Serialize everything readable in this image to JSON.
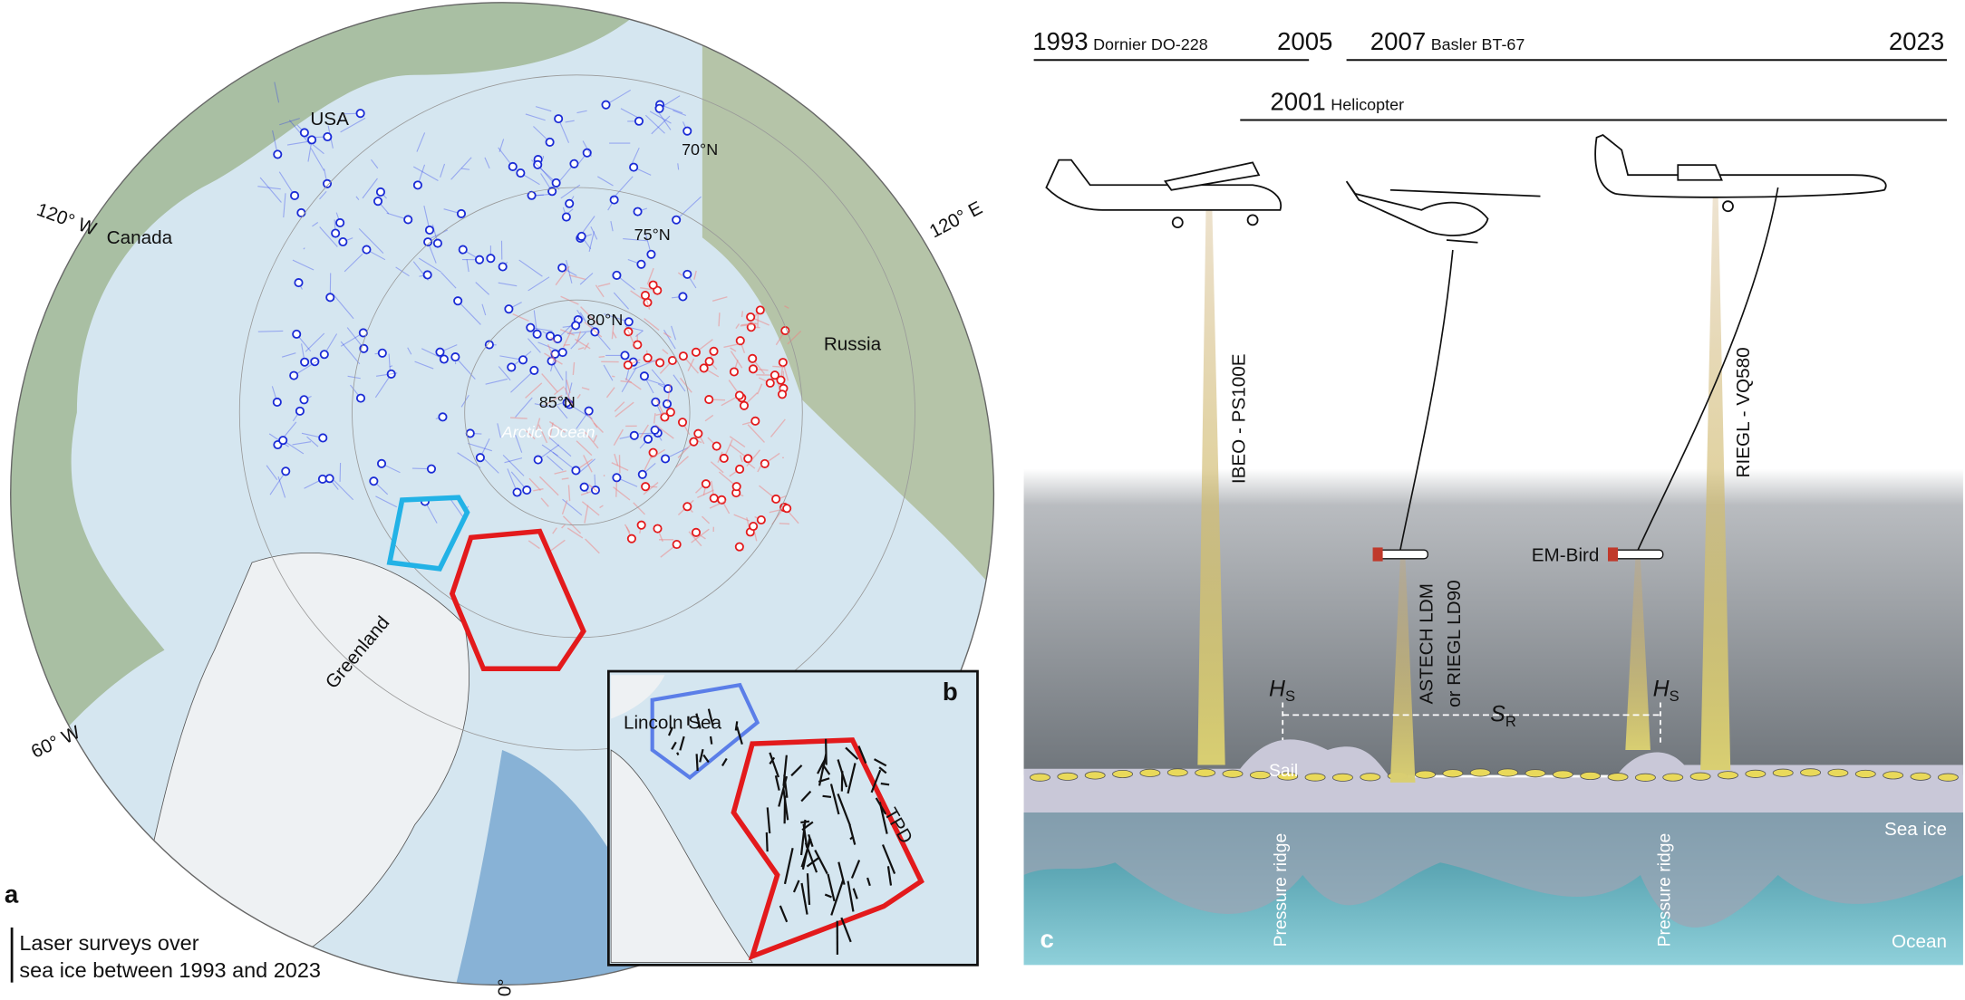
{
  "panel_a": {
    "label": "a",
    "map_labels": {
      "usa": "USA",
      "canada": "Canada",
      "lon_120w": "120° W",
      "lon_120e": "120° E",
      "lat_70": "70°N",
      "lat_75": "75°N",
      "lat_80": "80°N",
      "lat_85": "85°N",
      "ocean": "Arctic Ocean",
      "russia": "Russia",
      "greenland": "Greenland",
      "lon_60w": "60° W",
      "lon_0": "0°"
    },
    "caption": [
      "Laser surveys over",
      "sea ice between 1993 and 2023"
    ]
  },
  "panel_b": {
    "label": "b",
    "lincoln_sea": "Lincoln Sea",
    "tpd": "TPD"
  },
  "panel_c": {
    "label": "c",
    "timeline": [
      {
        "start": "1993",
        "aircraft": "Dornier DO-228",
        "end": "2005"
      },
      {
        "start": "2007",
        "aircraft": "Basler BT-67",
        "end": "2023"
      },
      {
        "start": "2001",
        "aircraft": "Helicopter"
      }
    ],
    "instruments": {
      "dornier": "IBEO - PS100E",
      "helicopter": [
        "ASTECH LDM",
        "or RIEGL LD90"
      ],
      "em_bird": "EM-Bird",
      "basler": "RIEGL - VQ580"
    },
    "annotations": {
      "h": "H",
      "h_sub": "S",
      "s": "S",
      "s_sub": "R",
      "sail": "Sail",
      "sea_ice": "Sea ice",
      "ocean": "Ocean",
      "pressure_ridge": "Pressure ridge"
    }
  }
}
